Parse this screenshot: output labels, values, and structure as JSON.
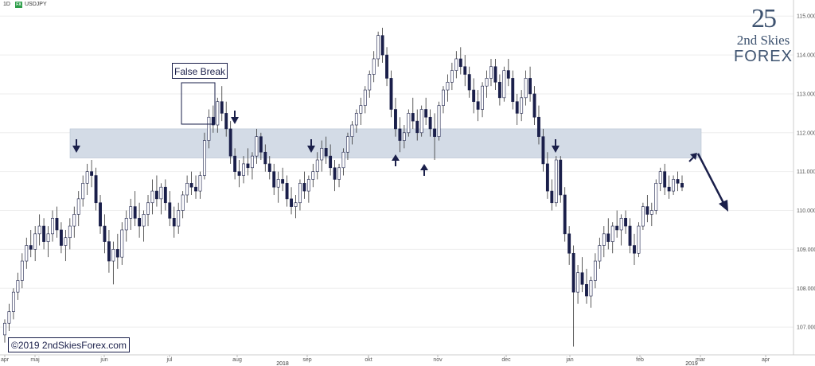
{
  "header": {
    "timeframe": "1D",
    "badge": "FX",
    "symbol": "USDJPY"
  },
  "logo": {
    "mark": "25",
    "line1": "2nd Skies",
    "line2": "FOREX"
  },
  "annotation": {
    "false_break": "False Break"
  },
  "copyright": "©2019 2ndSkiesForex.com",
  "colors": {
    "bull": "#ffffff",
    "bear": "#1a1f4a",
    "wick": "#333333",
    "zone": "#d3dbe6",
    "arrow": "#1a1f4a",
    "grid": "#eeeeee"
  },
  "chart_data": {
    "type": "candlestick",
    "symbol": "USDJPY",
    "timeframe": "1D",
    "y_ticks": [
      "115.000",
      "114.000",
      "113.000",
      "112.000",
      "111.000",
      "110.000",
      "109.000",
      "108.000",
      "107.000"
    ],
    "y_tick_values": [
      115,
      114,
      113,
      112,
      111,
      110,
      109,
      108,
      107
    ],
    "ylim": [
      106.45,
      115.25
    ],
    "months": [
      "apr",
      "maj",
      "jun",
      "jul",
      "aug",
      "sep",
      "okt",
      "nov",
      "dec",
      "jan",
      "feb",
      "mar",
      "apr"
    ],
    "years": [
      "2018",
      "2019"
    ],
    "resistance_zone": [
      111.35,
      112.1
    ],
    "ohlc": [
      [
        106.8,
        107.2,
        106.6,
        107.1
      ],
      [
        107.1,
        107.6,
        106.9,
        107.4
      ],
      [
        107.4,
        108.0,
        107.2,
        107.9
      ],
      [
        107.9,
        108.4,
        107.7,
        108.2
      ],
      [
        108.2,
        108.9,
        108.0,
        108.7
      ],
      [
        108.7,
        109.3,
        108.5,
        109.1
      ],
      [
        109.1,
        109.5,
        108.8,
        109.0
      ],
      [
        109.0,
        109.6,
        108.7,
        109.4
      ],
      [
        109.4,
        109.9,
        109.1,
        109.6
      ],
      [
        109.6,
        109.8,
        109.0,
        109.2
      ],
      [
        109.2,
        109.6,
        108.8,
        109.4
      ],
      [
        109.4,
        110.0,
        109.2,
        109.8
      ],
      [
        109.8,
        110.1,
        109.3,
        109.5
      ],
      [
        109.5,
        109.7,
        108.9,
        109.1
      ],
      [
        109.1,
        109.5,
        108.7,
        109.3
      ],
      [
        109.3,
        109.8,
        109.0,
        109.6
      ],
      [
        109.6,
        110.1,
        109.3,
        109.9
      ],
      [
        109.9,
        110.5,
        109.6,
        110.3
      ],
      [
        110.3,
        110.9,
        110.1,
        110.7
      ],
      [
        110.7,
        111.2,
        110.4,
        111.0
      ],
      [
        111.0,
        111.3,
        110.6,
        110.9
      ],
      [
        110.9,
        111.1,
        110.0,
        110.2
      ],
      [
        110.2,
        110.4,
        109.4,
        109.6
      ],
      [
        109.6,
        109.9,
        108.9,
        109.2
      ],
      [
        109.2,
        109.5,
        108.4,
        108.7
      ],
      [
        108.7,
        109.2,
        108.1,
        109.0
      ],
      [
        109.0,
        109.4,
        108.5,
        108.8
      ],
      [
        108.8,
        109.7,
        108.6,
        109.5
      ],
      [
        109.5,
        110.0,
        109.2,
        109.8
      ],
      [
        109.8,
        110.3,
        109.5,
        110.1
      ],
      [
        110.1,
        110.5,
        109.6,
        109.8
      ],
      [
        109.8,
        110.2,
        109.3,
        109.6
      ],
      [
        109.6,
        110.0,
        109.2,
        109.9
      ],
      [
        109.9,
        110.4,
        109.6,
        110.2
      ],
      [
        110.2,
        110.8,
        109.9,
        110.5
      ],
      [
        110.5,
        110.9,
        110.1,
        110.3
      ],
      [
        110.3,
        110.7,
        109.9,
        110.6
      ],
      [
        110.6,
        110.8,
        110.0,
        110.2
      ],
      [
        110.2,
        110.5,
        109.6,
        109.8
      ],
      [
        109.8,
        110.1,
        109.3,
        109.6
      ],
      [
        109.6,
        110.2,
        109.4,
        110.0
      ],
      [
        110.0,
        110.5,
        109.8,
        110.4
      ],
      [
        110.4,
        110.9,
        110.2,
        110.7
      ],
      [
        110.7,
        111.0,
        110.4,
        110.6
      ],
      [
        110.6,
        110.9,
        110.3,
        110.5
      ],
      [
        110.5,
        111.0,
        110.3,
        110.9
      ],
      [
        110.9,
        112.0,
        110.8,
        111.8
      ],
      [
        111.8,
        112.6,
        111.6,
        112.4
      ],
      [
        112.4,
        112.7,
        112.0,
        112.2
      ],
      [
        112.2,
        112.9,
        112.0,
        112.8
      ],
      [
        112.8,
        113.2,
        112.3,
        112.5
      ],
      [
        112.5,
        112.8,
        111.9,
        112.1
      ],
      [
        112.1,
        112.3,
        111.2,
        111.4
      ],
      [
        111.4,
        111.6,
        110.8,
        111.0
      ],
      [
        111.0,
        111.3,
        110.6,
        110.9
      ],
      [
        110.9,
        111.4,
        110.7,
        111.2
      ],
      [
        111.2,
        111.6,
        110.9,
        111.1
      ],
      [
        111.1,
        111.5,
        110.8,
        111.4
      ],
      [
        111.4,
        112.1,
        111.2,
        111.9
      ],
      [
        111.9,
        112.0,
        111.3,
        111.5
      ],
      [
        111.5,
        111.7,
        111.0,
        111.2
      ],
      [
        111.2,
        111.4,
        110.8,
        111.0
      ],
      [
        111.0,
        111.2,
        110.4,
        110.6
      ],
      [
        110.6,
        111.0,
        110.2,
        110.8
      ],
      [
        110.8,
        111.1,
        110.5,
        110.7
      ],
      [
        110.7,
        110.9,
        110.1,
        110.3
      ],
      [
        110.3,
        110.6,
        109.9,
        110.1
      ],
      [
        110.1,
        110.4,
        109.8,
        110.2
      ],
      [
        110.2,
        110.8,
        110.0,
        110.7
      ],
      [
        110.7,
        111.0,
        110.3,
        110.5
      ],
      [
        110.5,
        110.9,
        110.2,
        110.8
      ],
      [
        110.8,
        111.2,
        110.6,
        111.0
      ],
      [
        111.0,
        111.5,
        110.8,
        111.3
      ],
      [
        111.3,
        111.8,
        111.0,
        111.6
      ],
      [
        111.6,
        111.9,
        111.2,
        111.4
      ],
      [
        111.4,
        111.7,
        110.9,
        111.1
      ],
      [
        111.1,
        111.3,
        110.5,
        110.8
      ],
      [
        110.8,
        111.2,
        110.6,
        111.1
      ],
      [
        111.1,
        111.6,
        110.9,
        111.5
      ],
      [
        111.5,
        112.0,
        111.3,
        111.9
      ],
      [
        111.9,
        112.3,
        111.7,
        112.2
      ],
      [
        112.2,
        112.6,
        112.0,
        112.5
      ],
      [
        112.5,
        112.9,
        112.2,
        112.7
      ],
      [
        112.7,
        113.2,
        112.5,
        113.1
      ],
      [
        113.1,
        113.6,
        112.9,
        113.5
      ],
      [
        113.5,
        114.1,
        113.3,
        113.9
      ],
      [
        113.9,
        114.6,
        113.7,
        114.5
      ],
      [
        114.5,
        114.7,
        113.8,
        114.0
      ],
      [
        114.0,
        114.2,
        113.2,
        113.4
      ],
      [
        113.4,
        113.6,
        112.4,
        112.6
      ],
      [
        112.6,
        112.9,
        111.9,
        112.1
      ],
      [
        112.1,
        112.4,
        111.5,
        111.8
      ],
      [
        111.8,
        112.2,
        111.6,
        112.0
      ],
      [
        112.0,
        112.6,
        111.9,
        112.5
      ],
      [
        112.5,
        112.9,
        112.1,
        112.3
      ],
      [
        112.3,
        112.6,
        111.8,
        112.0
      ],
      [
        112.0,
        112.7,
        111.9,
        112.6
      ],
      [
        112.6,
        112.9,
        112.2,
        112.4
      ],
      [
        112.4,
        112.6,
        111.9,
        112.1
      ],
      [
        112.1,
        112.5,
        111.3,
        111.9
      ],
      [
        111.9,
        112.8,
        111.8,
        112.7
      ],
      [
        112.7,
        113.2,
        112.5,
        113.1
      ],
      [
        113.1,
        113.5,
        112.8,
        113.3
      ],
      [
        113.3,
        113.8,
        113.1,
        113.6
      ],
      [
        113.6,
        114.1,
        113.4,
        113.9
      ],
      [
        113.9,
        114.2,
        113.5,
        113.7
      ],
      [
        113.7,
        114.0,
        113.2,
        113.5
      ],
      [
        113.5,
        113.7,
        112.9,
        113.1
      ],
      [
        113.1,
        113.4,
        112.5,
        112.8
      ],
      [
        112.8,
        113.1,
        112.3,
        112.6
      ],
      [
        112.6,
        113.3,
        112.4,
        113.2
      ],
      [
        113.2,
        113.6,
        112.9,
        113.4
      ],
      [
        113.4,
        113.9,
        113.2,
        113.7
      ],
      [
        113.7,
        113.9,
        113.1,
        113.3
      ],
      [
        113.3,
        113.5,
        112.7,
        112.9
      ],
      [
        112.9,
        113.7,
        112.8,
        113.6
      ],
      [
        113.6,
        113.9,
        113.2,
        113.4
      ],
      [
        113.4,
        113.6,
        112.6,
        112.8
      ],
      [
        112.8,
        113.0,
        112.2,
        112.5
      ],
      [
        112.5,
        113.1,
        112.3,
        112.9
      ],
      [
        112.9,
        113.6,
        112.7,
        113.4
      ],
      [
        113.4,
        113.7,
        112.8,
        113.0
      ],
      [
        113.0,
        113.2,
        112.2,
        112.4
      ],
      [
        112.4,
        112.7,
        111.7,
        111.9
      ],
      [
        111.9,
        112.1,
        111.0,
        111.2
      ],
      [
        111.2,
        111.5,
        110.3,
        110.5
      ],
      [
        110.5,
        110.8,
        110.0,
        110.2
      ],
      [
        110.2,
        111.4,
        110.1,
        111.3
      ],
      [
        111.3,
        111.4,
        110.2,
        110.4
      ],
      [
        110.4,
        110.6,
        109.2,
        109.4
      ],
      [
        109.4,
        109.6,
        108.6,
        108.9
      ],
      [
        108.9,
        109.1,
        106.5,
        107.9
      ],
      [
        107.9,
        108.6,
        107.6,
        108.4
      ],
      [
        108.4,
        108.8,
        107.9,
        108.1
      ],
      [
        108.1,
        108.5,
        107.6,
        107.8
      ],
      [
        107.8,
        108.3,
        107.5,
        108.2
      ],
      [
        108.2,
        108.9,
        108.0,
        108.7
      ],
      [
        108.7,
        109.3,
        108.5,
        109.1
      ],
      [
        109.1,
        109.6,
        108.8,
        109.4
      ],
      [
        109.4,
        109.8,
        109.0,
        109.2
      ],
      [
        109.2,
        109.7,
        108.9,
        109.6
      ],
      [
        109.6,
        110.0,
        109.3,
        109.5
      ],
      [
        109.5,
        109.9,
        109.1,
        109.8
      ],
      [
        109.8,
        110.0,
        109.4,
        109.6
      ],
      [
        109.6,
        109.8,
        108.9,
        109.1
      ],
      [
        109.1,
        109.4,
        108.6,
        108.9
      ],
      [
        108.9,
        109.7,
        108.8,
        109.6
      ],
      [
        109.6,
        110.2,
        109.5,
        110.1
      ],
      [
        110.1,
        110.4,
        109.7,
        109.9
      ],
      [
        109.9,
        110.2,
        109.6,
        110.0
      ],
      [
        110.0,
        110.8,
        109.9,
        110.7
      ],
      [
        110.7,
        111.1,
        110.5,
        111.0
      ],
      [
        111.0,
        111.2,
        110.4,
        110.6
      ],
      [
        110.6,
        110.9,
        110.3,
        110.5
      ],
      [
        110.5,
        110.9,
        110.4,
        110.8
      ],
      [
        110.8,
        111.0,
        110.5,
        110.7
      ],
      [
        110.7,
        110.9,
        110.5,
        110.6
      ]
    ]
  }
}
